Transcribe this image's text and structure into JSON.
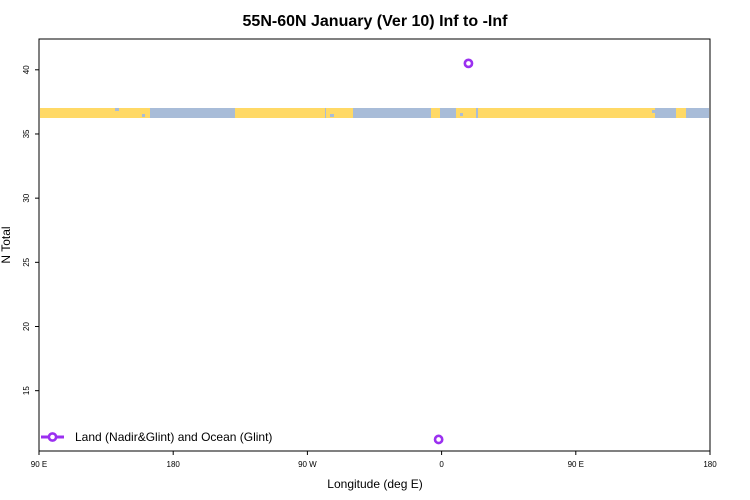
{
  "chart_data": {
    "type": "scatter",
    "title": "55N-60N January (Ver 10)   Inf to -Inf",
    "xlabel": "Longitude (deg E)",
    "ylabel": "N Total",
    "x_ticks": [
      {
        "value": 90,
        "label": "90 E"
      },
      {
        "value": 180,
        "label": "180"
      },
      {
        "value": 270,
        "label": "90 W"
      },
      {
        "value": 360,
        "label": "0"
      },
      {
        "value": 450,
        "label": "90 E"
      },
      {
        "value": 540,
        "label": "180"
      }
    ],
    "y_ticks": [
      15,
      20,
      25,
      30,
      35,
      40
    ],
    "xlim": [
      90,
      540
    ],
    "ylim": [
      10.3,
      42.4
    ],
    "grid": false,
    "legend_position": "bottom-left",
    "series": [
      {
        "name": "Land (Nadir&Glint) and Ocean (Glint)",
        "color": "#9b30f0",
        "x": [
          378,
          358
        ],
        "y": [
          40.5,
          11.2
        ]
      }
    ],
    "colors": {
      "land": "#ffd966",
      "ocean": "#a8bcd8",
      "marker": "#9b30f0"
    }
  }
}
